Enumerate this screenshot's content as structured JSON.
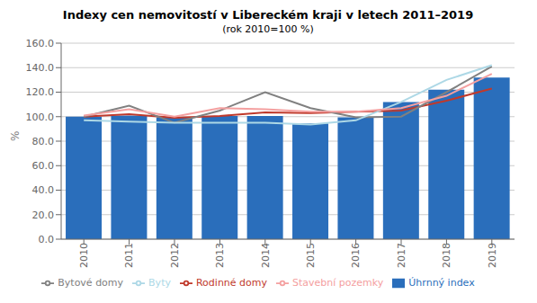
{
  "chart_data": {
    "type": "bar",
    "title": "Indexy cen nemovitostí v Libereckém kraji v letech 2011–2019",
    "subtitle": "(rok 2010=100 %)",
    "ylabel": "%",
    "categories": [
      "2010",
      "2011",
      "2012",
      "2013",
      "2014",
      "2015",
      "2016",
      "2017",
      "2018",
      "2019"
    ],
    "series": [
      {
        "name": "Úhrnný index",
        "type": "bar",
        "color": "#2a6ebb",
        "values": [
          100.0,
          101.0,
          99.5,
          100.5,
          100.5,
          94.5,
          99.5,
          112.0,
          122.0,
          132.0
        ]
      },
      {
        "name": "Rodinné domy",
        "type": "line",
        "color": "#c0392b",
        "values": [
          100.0,
          102.0,
          99.0,
          100.5,
          103.5,
          103.0,
          104.0,
          105.0,
          113.0,
          123.0
        ]
      },
      {
        "name": "Bytové domy",
        "type": "line",
        "color": "#808080",
        "values": [
          100.0,
          109.0,
          95.0,
          105.0,
          120.0,
          107.0,
          99.5,
          100.0,
          120.0,
          141.0
        ]
      },
      {
        "name": "Byty",
        "type": "line",
        "color": "#add8e6",
        "values": [
          97.0,
          96.0,
          95.0,
          95.0,
          95.0,
          93.5,
          97.0,
          112.0,
          130.0,
          142.0
        ]
      },
      {
        "name": "Stavební pozemky",
        "type": "line",
        "color": "#f4a0a0",
        "values": [
          101.0,
          106.0,
          100.0,
          107.0,
          106.0,
          104.0,
          104.0,
          107.0,
          117.0,
          135.0
        ]
      }
    ],
    "ylim": [
      0,
      160
    ],
    "yticks": [
      {
        "value": 0,
        "label": "0.0"
      },
      {
        "value": 20,
        "label": "20.0"
      },
      {
        "value": 40,
        "label": "40.0"
      },
      {
        "value": 60,
        "label": "60.0"
      },
      {
        "value": 80,
        "label": "80.0"
      },
      {
        "value": 100,
        "label": "100.0"
      },
      {
        "value": 120,
        "label": "120.0"
      },
      {
        "value": 140,
        "label": "140.0"
      },
      {
        "value": 160,
        "label": "160.0"
      }
    ],
    "grid": true,
    "legend": "bottom"
  }
}
